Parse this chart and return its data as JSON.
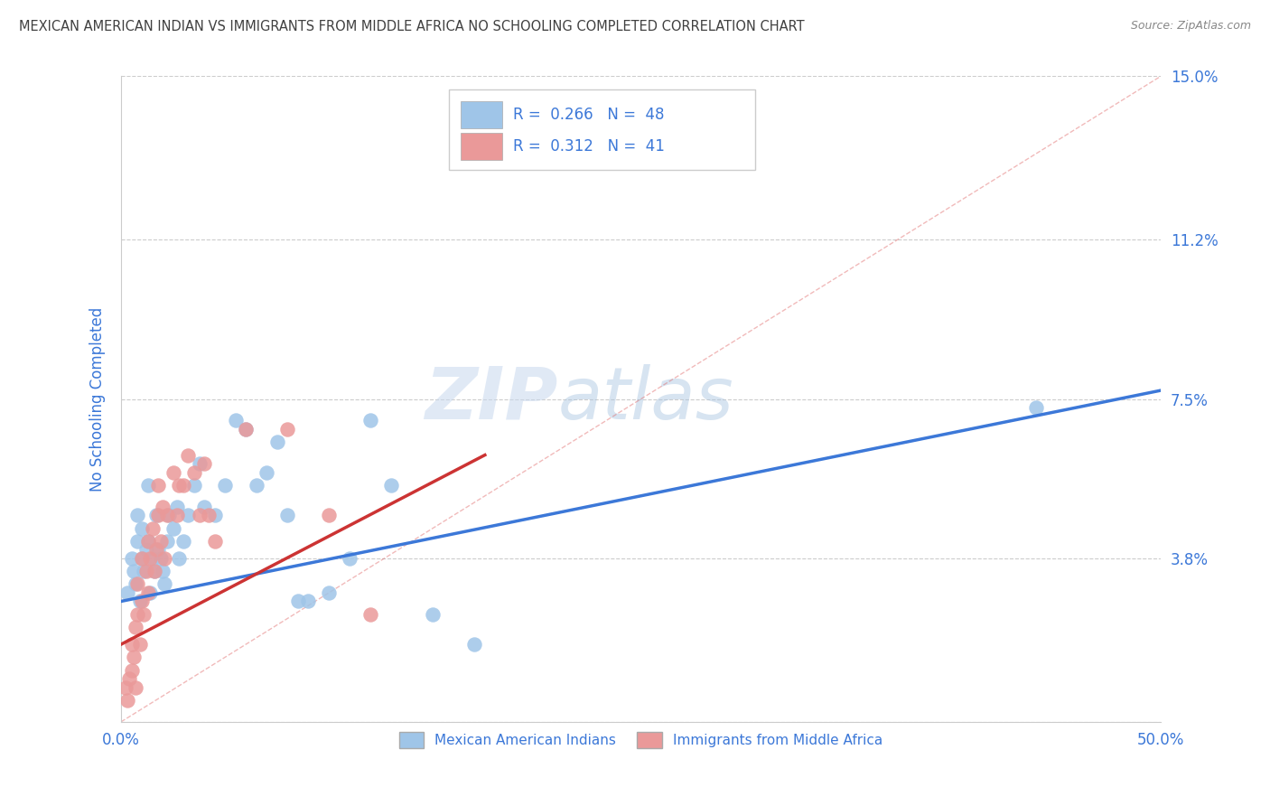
{
  "title": "MEXICAN AMERICAN INDIAN VS IMMIGRANTS FROM MIDDLE AFRICA NO SCHOOLING COMPLETED CORRELATION CHART",
  "source": "Source: ZipAtlas.com",
  "ylabel": "No Schooling Completed",
  "xlim": [
    0.0,
    0.5
  ],
  "ylim": [
    0.0,
    0.15
  ],
  "xticks": [
    0.0,
    0.1,
    0.2,
    0.3,
    0.4,
    0.5
  ],
  "xticklabels": [
    "0.0%",
    "",
    "",
    "",
    "",
    "50.0%"
  ],
  "ytick_positions": [
    0.0,
    0.038,
    0.075,
    0.112,
    0.15
  ],
  "yticklabels": [
    "",
    "3.8%",
    "7.5%",
    "11.2%",
    "15.0%"
  ],
  "legend1_label": "Mexican American Indians",
  "legend2_label": "Immigrants from Middle Africa",
  "r1": "0.266",
  "n1": "48",
  "r2": "0.312",
  "n2": "41",
  "color1": "#9fc5e8",
  "color2": "#ea9999",
  "trendline1_color": "#3c78d8",
  "trendline2_color": "#cc3333",
  "diagonal_color": "#e06666",
  "watermark_zip": "ZIP",
  "watermark_atlas": "atlas",
  "background_color": "#ffffff",
  "grid_color": "#cccccc",
  "title_color": "#404040",
  "source_color": "#888888",
  "axis_label_color": "#3c78d8",
  "tick_label_color": "#3c78d8",
  "legend_r_color": "#3c78d8",
  "blue_points_x": [
    0.003,
    0.005,
    0.006,
    0.007,
    0.008,
    0.008,
    0.009,
    0.01,
    0.01,
    0.011,
    0.012,
    0.013,
    0.013,
    0.014,
    0.015,
    0.016,
    0.017,
    0.018,
    0.019,
    0.02,
    0.021,
    0.022,
    0.023,
    0.025,
    0.027,
    0.028,
    0.03,
    0.032,
    0.035,
    0.038,
    0.04,
    0.045,
    0.05,
    0.055,
    0.06,
    0.065,
    0.07,
    0.075,
    0.08,
    0.085,
    0.09,
    0.1,
    0.11,
    0.12,
    0.13,
    0.15,
    0.17,
    0.44
  ],
  "blue_points_y": [
    0.03,
    0.038,
    0.035,
    0.032,
    0.042,
    0.048,
    0.028,
    0.038,
    0.045,
    0.035,
    0.04,
    0.042,
    0.055,
    0.03,
    0.038,
    0.035,
    0.048,
    0.04,
    0.038,
    0.035,
    0.032,
    0.042,
    0.048,
    0.045,
    0.05,
    0.038,
    0.042,
    0.048,
    0.055,
    0.06,
    0.05,
    0.048,
    0.055,
    0.07,
    0.068,
    0.055,
    0.058,
    0.065,
    0.048,
    0.028,
    0.028,
    0.03,
    0.038,
    0.07,
    0.055,
    0.025,
    0.018,
    0.073
  ],
  "pink_points_x": [
    0.002,
    0.003,
    0.004,
    0.005,
    0.005,
    0.006,
    0.007,
    0.007,
    0.008,
    0.008,
    0.009,
    0.01,
    0.01,
    0.011,
    0.012,
    0.013,
    0.013,
    0.014,
    0.015,
    0.016,
    0.017,
    0.018,
    0.018,
    0.019,
    0.02,
    0.021,
    0.022,
    0.025,
    0.027,
    0.028,
    0.03,
    0.032,
    0.035,
    0.038,
    0.04,
    0.042,
    0.045,
    0.06,
    0.08,
    0.1,
    0.12
  ],
  "pink_points_y": [
    0.008,
    0.005,
    0.01,
    0.012,
    0.018,
    0.015,
    0.008,
    0.022,
    0.025,
    0.032,
    0.018,
    0.028,
    0.038,
    0.025,
    0.035,
    0.03,
    0.042,
    0.038,
    0.045,
    0.035,
    0.04,
    0.048,
    0.055,
    0.042,
    0.05,
    0.038,
    0.048,
    0.058,
    0.048,
    0.055,
    0.055,
    0.062,
    0.058,
    0.048,
    0.06,
    0.048,
    0.042,
    0.068,
    0.068,
    0.048,
    0.025
  ],
  "blue_trend_x": [
    0.0,
    0.5
  ],
  "blue_trend_y": [
    0.028,
    0.077
  ],
  "pink_trend_x": [
    0.0,
    0.175
  ],
  "pink_trend_y": [
    0.018,
    0.062
  ]
}
